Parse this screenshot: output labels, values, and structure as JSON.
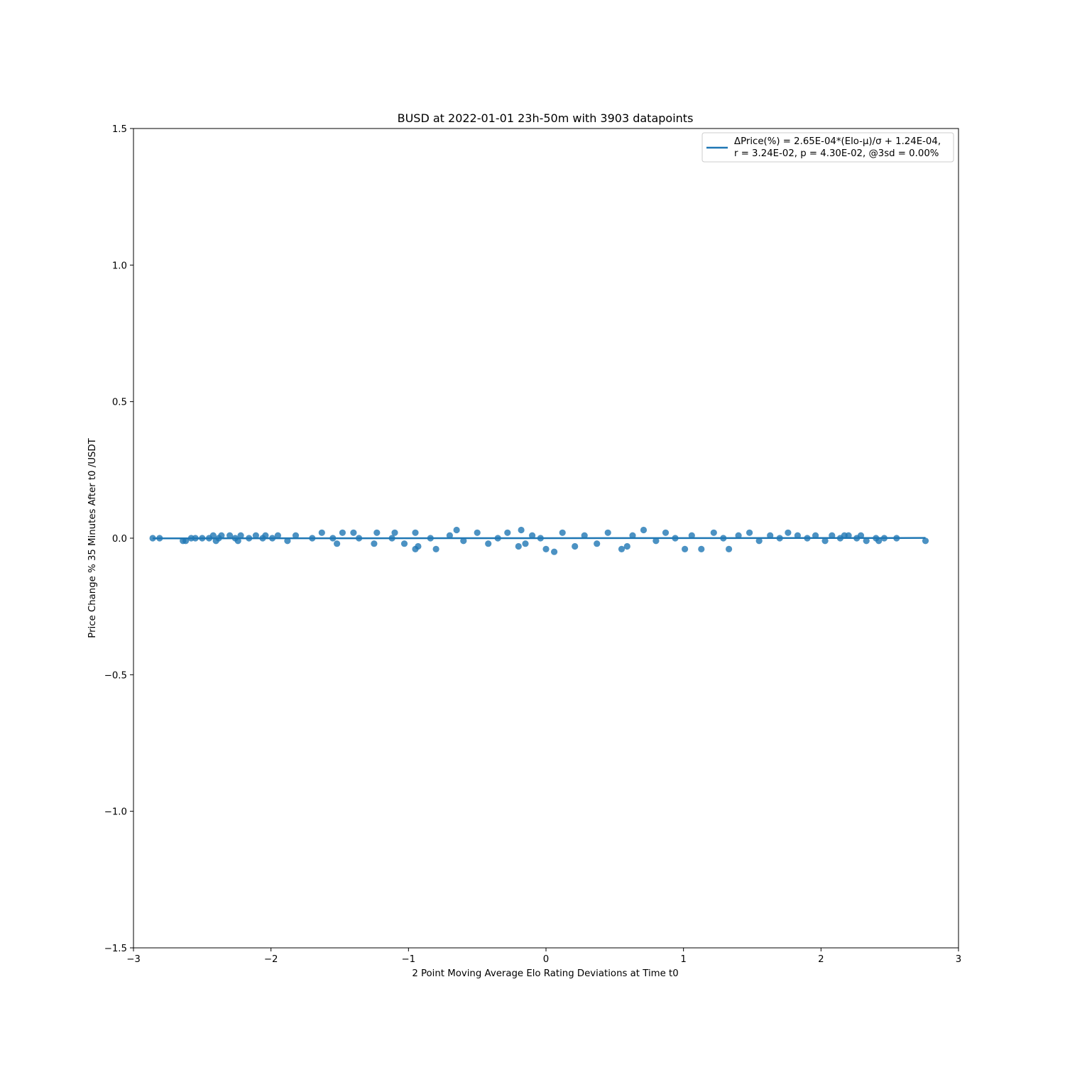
{
  "chart_data": {
    "type": "scatter",
    "title": "BUSD at 2022-01-01 23h-50m with 3903 datapoints",
    "xlabel": "2 Point Moving Average Elo Rating Deviations at Time t0",
    "ylabel": "Price Change % 35 Minutes After t0 /USDT",
    "xlim": [
      -3,
      3
    ],
    "ylim": [
      -1.5,
      1.5
    ],
    "xticks": [
      -3,
      -2,
      -1,
      0,
      1,
      2,
      3
    ],
    "xtick_labels": [
      "−3",
      "−2",
      "−1",
      "0",
      "1",
      "2",
      "3"
    ],
    "yticks": [
      -1.5,
      -1.0,
      -0.5,
      0.0,
      0.5,
      1.0,
      1.5
    ],
    "ytick_labels": [
      "−1.5",
      "−1.0",
      "−0.5",
      "0.0",
      "0.5",
      "1.0",
      "1.5"
    ],
    "grid": false,
    "legend_position": "top-right",
    "color": "#1f77b4",
    "fit_line": {
      "slope": 0.000265,
      "intercept": 0.000124,
      "x_range": [
        -2.86,
        2.76
      ],
      "label_line1": "ΔPrice(%) = 2.65E-04*(Elo-μ)/σ + 1.24E-04,",
      "label_line2": "r = 3.24E-02, p = 4.30E-02, @3sd = 0.00%"
    },
    "points": [
      [
        -2.86,
        0.0
      ],
      [
        -2.81,
        0.0
      ],
      [
        -2.64,
        -0.01
      ],
      [
        -2.62,
        -0.01
      ],
      [
        -2.58,
        0.0
      ],
      [
        -2.55,
        0.0
      ],
      [
        -2.5,
        0.0
      ],
      [
        -2.45,
        0.0
      ],
      [
        -2.42,
        0.01
      ],
      [
        -2.4,
        -0.01
      ],
      [
        -2.38,
        0.0
      ],
      [
        -2.36,
        0.01
      ],
      [
        -2.3,
        0.01
      ],
      [
        -2.26,
        0.0
      ],
      [
        -2.24,
        -0.01
      ],
      [
        -2.22,
        0.01
      ],
      [
        -2.16,
        0.0
      ],
      [
        -2.11,
        0.01
      ],
      [
        -2.06,
        0.0
      ],
      [
        -2.04,
        0.01
      ],
      [
        -1.99,
        0.0
      ],
      [
        -1.95,
        0.01
      ],
      [
        -1.88,
        -0.01
      ],
      [
        -1.82,
        0.01
      ],
      [
        -1.7,
        0.0
      ],
      [
        -1.63,
        0.02
      ],
      [
        -1.55,
        0.0
      ],
      [
        -1.52,
        -0.02
      ],
      [
        -1.48,
        0.02
      ],
      [
        -1.4,
        0.02
      ],
      [
        -1.36,
        0.0
      ],
      [
        -1.25,
        -0.02
      ],
      [
        -1.23,
        0.02
      ],
      [
        -1.12,
        0.0
      ],
      [
        -1.1,
        0.02
      ],
      [
        -1.03,
        -0.02
      ],
      [
        -0.95,
        0.02
      ],
      [
        -0.95,
        -0.04
      ],
      [
        -0.93,
        -0.03
      ],
      [
        -0.84,
        0.0
      ],
      [
        -0.8,
        -0.04
      ],
      [
        -0.7,
        0.01
      ],
      [
        -0.65,
        0.03
      ],
      [
        -0.6,
        -0.01
      ],
      [
        -0.5,
        0.02
      ],
      [
        -0.42,
        -0.02
      ],
      [
        -0.35,
        0.0
      ],
      [
        -0.28,
        0.02
      ],
      [
        -0.2,
        -0.03
      ],
      [
        -0.18,
        0.03
      ],
      [
        -0.15,
        -0.02
      ],
      [
        -0.1,
        0.01
      ],
      [
        -0.04,
        0.0
      ],
      [
        0.0,
        -0.04
      ],
      [
        0.06,
        -0.05
      ],
      [
        0.12,
        0.02
      ],
      [
        0.21,
        -0.03
      ],
      [
        0.28,
        0.01
      ],
      [
        0.37,
        -0.02
      ],
      [
        0.45,
        0.02
      ],
      [
        0.55,
        -0.04
      ],
      [
        0.59,
        -0.03
      ],
      [
        0.63,
        0.01
      ],
      [
        0.71,
        0.03
      ],
      [
        0.8,
        -0.01
      ],
      [
        0.87,
        0.02
      ],
      [
        0.94,
        0.0
      ],
      [
        1.01,
        -0.04
      ],
      [
        1.06,
        0.01
      ],
      [
        1.13,
        -0.04
      ],
      [
        1.22,
        0.02
      ],
      [
        1.29,
        0.0
      ],
      [
        1.33,
        -0.04
      ],
      [
        1.4,
        0.01
      ],
      [
        1.48,
        0.02
      ],
      [
        1.55,
        -0.01
      ],
      [
        1.63,
        0.01
      ],
      [
        1.7,
        0.0
      ],
      [
        1.76,
        0.02
      ],
      [
        1.83,
        0.01
      ],
      [
        1.9,
        0.0
      ],
      [
        1.96,
        0.01
      ],
      [
        2.03,
        -0.01
      ],
      [
        2.08,
        0.01
      ],
      [
        2.14,
        0.0
      ],
      [
        2.17,
        0.01
      ],
      [
        2.2,
        0.01
      ],
      [
        2.26,
        0.0
      ],
      [
        2.29,
        0.01
      ],
      [
        2.33,
        -0.01
      ],
      [
        2.4,
        0.0
      ],
      [
        2.42,
        -0.01
      ],
      [
        2.46,
        0.0
      ],
      [
        2.55,
        0.0
      ],
      [
        2.76,
        -0.01
      ]
    ]
  }
}
